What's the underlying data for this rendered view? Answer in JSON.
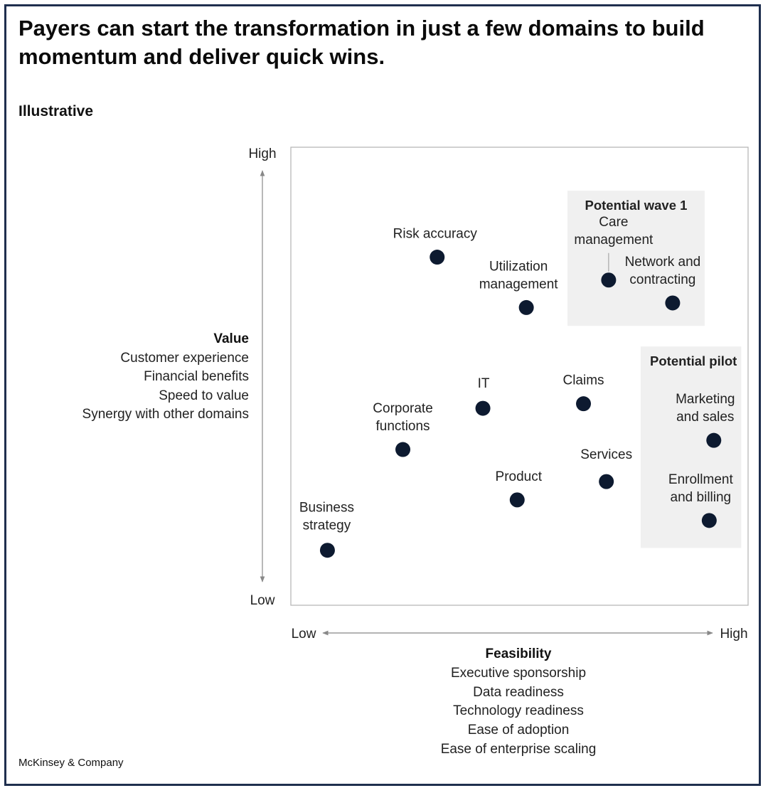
{
  "header": {
    "title": "Payers can start the transformation in just a few domains to build momentum and deliver quick wins.",
    "subtitle": "Illustrative"
  },
  "footer": {
    "source": "McKinsey & Company"
  },
  "colors": {
    "frame": "#1f2f4e",
    "dot": "#0d1a30",
    "highlight": "#f0f0f0",
    "axis": "#888888"
  },
  "chart_data": {
    "type": "scatter",
    "title": "Payers can start the transformation in just a few domains to build momentum and deliver quick wins.",
    "subtitle": "Illustrative",
    "x_axis": {
      "label": "Feasibility",
      "low": "Low",
      "high": "High",
      "drivers": [
        "Executive sponsorship",
        "Data readiness",
        "Technology readiness",
        "Ease of adoption",
        "Ease of enterprise scaling"
      ]
    },
    "y_axis": {
      "label": "Value",
      "low": "Low",
      "high": "High",
      "drivers": [
        "Customer experience",
        "Financial benefits",
        "Speed to value",
        "Synergy with other domains"
      ]
    },
    "xlim": [
      0,
      100
    ],
    "ylim": [
      0,
      100
    ],
    "points": [
      {
        "label": "Risk accuracy",
        "x": 32,
        "y": 76
      },
      {
        "label": "Utilization management",
        "x": 51.5,
        "y": 65
      },
      {
        "label": "Care management",
        "x": 69.5,
        "y": 71
      },
      {
        "label": "Network and contracting",
        "x": 83.5,
        "y": 66
      },
      {
        "label": "IT",
        "x": 42,
        "y": 43
      },
      {
        "label": "Claims",
        "x": 64,
        "y": 44
      },
      {
        "label": "Corporate functions",
        "x": 24.5,
        "y": 34
      },
      {
        "label": "Marketing and sales",
        "x": 92.5,
        "y": 36
      },
      {
        "label": "Services",
        "x": 69,
        "y": 27
      },
      {
        "label": "Product",
        "x": 49.5,
        "y": 23
      },
      {
        "label": "Enrollment and billing",
        "x": 91.5,
        "y": 18.5
      },
      {
        "label": "Business strategy",
        "x": 8,
        "y": 12
      }
    ],
    "groups": [
      {
        "name": "Potential wave 1",
        "x_range": [
          60.5,
          90.5
        ],
        "y_range": [
          61,
          90.5
        ]
      },
      {
        "name": "Potential pilot",
        "x_range": [
          76.5,
          98.5
        ],
        "y_range": [
          12.5,
          56.5
        ]
      }
    ]
  }
}
